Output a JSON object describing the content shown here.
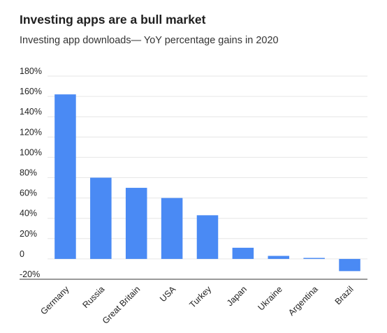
{
  "chart_data": {
    "type": "bar",
    "title": "Investing apps are a bull market",
    "subtitle": "Investing app downloads— YoY percentage gains in 2020",
    "xlabel": "",
    "ylabel": "",
    "categories": [
      "Germany",
      "Russia",
      "Great Britain",
      "USA",
      "Turkey",
      "Japan",
      "Ukraine",
      "Argentina",
      "Brazil"
    ],
    "values": [
      162,
      80,
      70,
      60,
      43,
      11,
      3,
      1,
      -12
    ],
    "ylim": [
      -20,
      180
    ],
    "yticks": [
      180,
      160,
      140,
      120,
      100,
      80,
      60,
      40,
      20,
      0,
      -20
    ],
    "ytick_labels": [
      "180%",
      "160%",
      "140%",
      "120%",
      "100%",
      "80%",
      "60%",
      "40%",
      "20%",
      "0",
      "-20%"
    ],
    "grid": true,
    "legend": "none",
    "colors": {
      "bar": "#4a8af4",
      "grid": "#e6e6e6",
      "axis": "#333333"
    }
  }
}
